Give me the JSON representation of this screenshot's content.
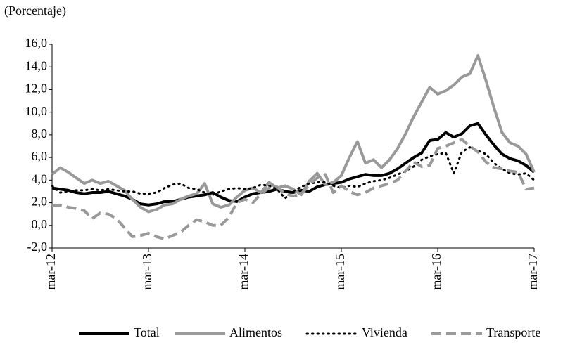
{
  "chart_data": {
    "type": "line",
    "ylabel": "(Porcentaje)",
    "categories": [
      "mar-12",
      null,
      null,
      null,
      null,
      null,
      null,
      null,
      null,
      null,
      null,
      null,
      "mar-13",
      null,
      null,
      null,
      null,
      null,
      null,
      null,
      null,
      null,
      null,
      null,
      "mar-14",
      null,
      null,
      null,
      null,
      null,
      null,
      null,
      null,
      null,
      null,
      null,
      "mar-15",
      null,
      null,
      null,
      null,
      null,
      null,
      null,
      null,
      null,
      null,
      null,
      "mar-16",
      null,
      null,
      null,
      null,
      null,
      null,
      null,
      null,
      null,
      null,
      null,
      "mar-17"
    ],
    "ylim": [
      -2,
      16
    ],
    "yticks": [
      {
        "value": -2,
        "label": "-2,0"
      },
      {
        "value": 0,
        "label": "0,0"
      },
      {
        "value": 2,
        "label": "2,0"
      },
      {
        "value": 4,
        "label": "4,0"
      },
      {
        "value": 6,
        "label": "6,0"
      },
      {
        "value": 8,
        "label": "8,0"
      },
      {
        "value": 10,
        "label": "10,0"
      },
      {
        "value": 12,
        "label": "12,0"
      },
      {
        "value": 14,
        "label": "14,0"
      },
      {
        "value": 16,
        "label": "16,0"
      }
    ],
    "legend": "bottom",
    "series": [
      {
        "name": "Total",
        "color": "#000000",
        "line_style": "solid",
        "values": [
          3.3,
          3.2,
          3.1,
          2.9,
          2.8,
          2.9,
          2.9,
          3.0,
          2.8,
          2.6,
          2.3,
          1.9,
          1.8,
          1.9,
          2.1,
          2.1,
          2.3,
          2.5,
          2.6,
          2.7,
          2.9,
          2.5,
          2.2,
          2.1,
          2.5,
          2.8,
          2.9,
          3.0,
          3.2,
          3.0,
          2.9,
          3.1,
          3.0,
          3.4,
          3.6,
          3.7,
          3.8,
          4.1,
          4.3,
          4.5,
          4.4,
          4.4,
          4.6,
          5.0,
          5.5,
          6.0,
          6.4,
          7.5,
          7.6,
          8.2,
          7.8,
          8.1,
          8.8,
          9.0,
          8.0,
          7.1,
          6.3,
          5.9,
          5.7,
          5.3,
          4.7
        ]
      },
      {
        "name": "Alimentos",
        "color": "#999999",
        "line_style": "solid",
        "values": [
          4.5,
          5.1,
          4.7,
          4.2,
          3.7,
          4.0,
          3.7,
          3.9,
          3.5,
          3.1,
          2.3,
          1.6,
          1.2,
          1.4,
          1.8,
          1.9,
          2.3,
          2.6,
          2.8,
          3.7,
          1.9,
          1.6,
          1.8,
          2.5,
          3.1,
          3.3,
          2.9,
          3.8,
          3.3,
          3.5,
          3.2,
          2.7,
          3.9,
          4.6,
          3.6,
          3.8,
          4.4,
          6.0,
          7.4,
          5.5,
          5.8,
          5.1,
          5.8,
          6.8,
          8.1,
          9.6,
          10.9,
          12.2,
          11.6,
          11.9,
          12.4,
          13.1,
          13.4,
          15.0,
          12.8,
          10.4,
          8.2,
          7.3,
          7.0,
          6.3,
          4.7
        ]
      },
      {
        "name": "Vivienda",
        "color": "#000000",
        "line_style": "dotted",
        "values": [
          3.5,
          2.9,
          3.0,
          3.1,
          3.1,
          3.2,
          3.1,
          3.2,
          3.1,
          3.0,
          3.0,
          2.8,
          2.8,
          2.9,
          3.3,
          3.6,
          3.7,
          3.3,
          3.2,
          2.9,
          2.7,
          3.0,
          3.2,
          3.3,
          3.2,
          3.3,
          3.6,
          3.5,
          3.2,
          2.4,
          3.0,
          3.4,
          3.7,
          3.8,
          3.8,
          3.5,
          3.3,
          3.5,
          3.4,
          3.7,
          3.9,
          4.0,
          4.2,
          4.5,
          4.8,
          5.2,
          5.8,
          6.1,
          6.3,
          6.4,
          4.6,
          6.5,
          6.9,
          6.6,
          6.3,
          5.5,
          5.0,
          4.6,
          4.5,
          4.6,
          4.0
        ]
      },
      {
        "name": "Transporte",
        "color": "#999999",
        "line_style": "dashed",
        "values": [
          1.7,
          1.8,
          1.6,
          1.5,
          1.3,
          0.6,
          1.1,
          1.0,
          0.6,
          -0.2,
          -1.0,
          -0.9,
          -0.7,
          -1.0,
          -1.2,
          -0.9,
          -0.6,
          0.0,
          0.5,
          0.3,
          0.0,
          0.0,
          0.7,
          2.0,
          2.3,
          2.0,
          2.8,
          3.3,
          3.4,
          2.8,
          2.6,
          2.7,
          3.6,
          4.2,
          4.5,
          2.9,
          3.5,
          3.0,
          2.7,
          2.9,
          3.3,
          3.5,
          3.7,
          4.0,
          4.8,
          5.6,
          5.2,
          5.3,
          6.8,
          7.0,
          7.3,
          7.6,
          7.0,
          6.5,
          5.6,
          5.1,
          5.0,
          4.8,
          4.7,
          3.2,
          3.3
        ]
      }
    ]
  }
}
